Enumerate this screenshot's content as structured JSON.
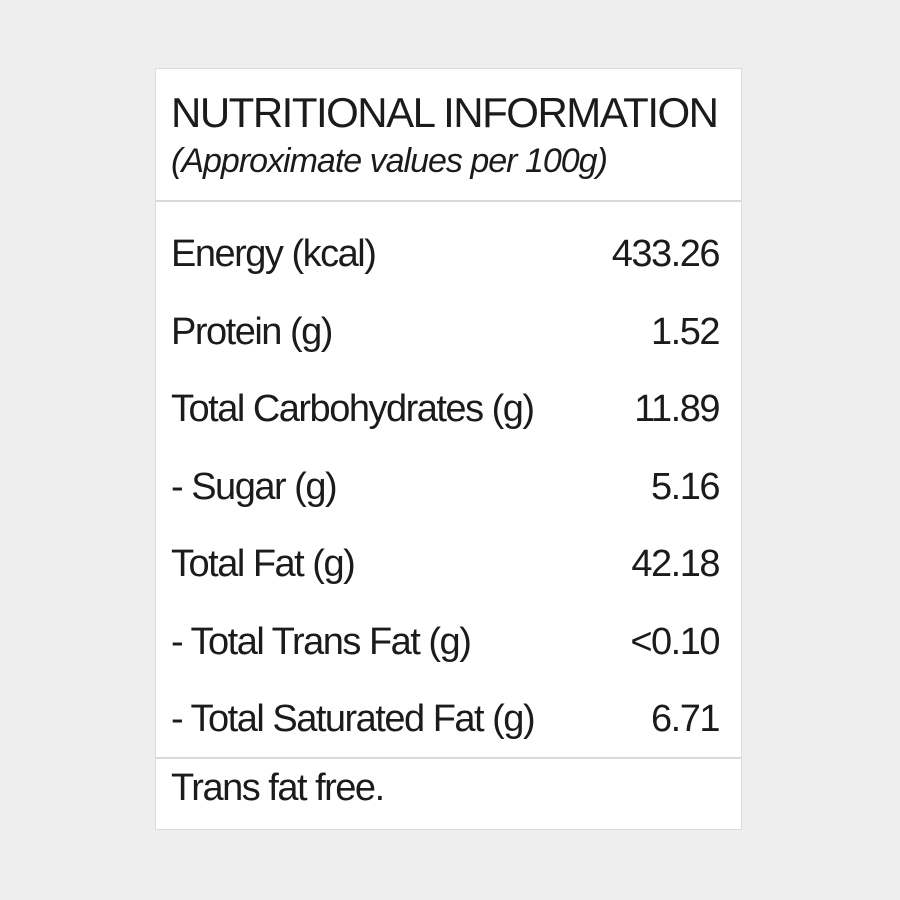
{
  "panel": {
    "title": "NUTRITIONAL INFORMATION",
    "subtitle": "(Approximate values per 100g)"
  },
  "rows": [
    {
      "label": "Energy (kcal)",
      "value": "433.26"
    },
    {
      "label": "Protein (g)",
      "value": "1.52"
    },
    {
      "label": "Total Carbohydrates (g)",
      "value": "11.89"
    },
    {
      "label": "- Sugar (g)",
      "value": "5.16"
    },
    {
      "label": "Total Fat (g)",
      "value": "42.18"
    },
    {
      "label": "- Total Trans Fat (g)",
      "value": "<0.10"
    },
    {
      "label": "- Total Saturated Fat (g)",
      "value": "6.71"
    }
  ],
  "footer": {
    "note": "Trans fat free."
  }
}
